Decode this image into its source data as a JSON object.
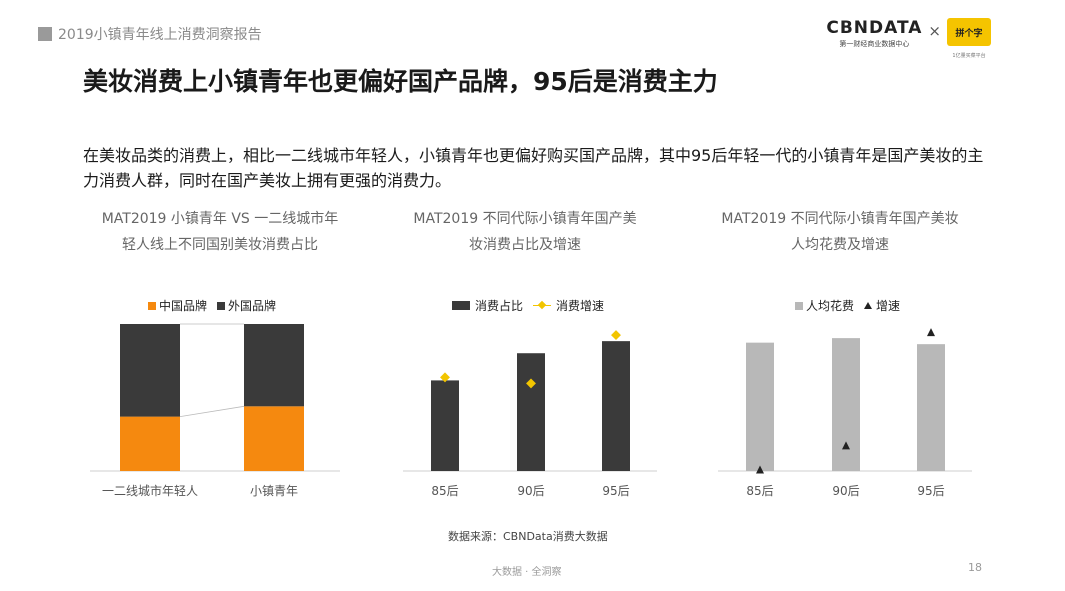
{
  "header": {
    "report_tag": "2019小镇青年线上消费洞察报告",
    "logo_main": "CBNDATA",
    "logo_sub": "第一财经商业数据中心",
    "logo_separator": "×",
    "partner_name": "拼个字",
    "partner_tagline": "1亿量买菜平台"
  },
  "title": "美妆消费上小镇青年也更偏好国产品牌，95后是消费主力",
  "description": "在美妆品类的消费上，相比一二线城市年轻人，小镇青年也更偏好购买国产品牌，其中95后年轻一代的小镇青年是国产美妆的主力消费人群，同时在国产美妆上拥有更强的消费力。",
  "chart_data": [
    {
      "type": "bar",
      "stacked": true,
      "title": "MAT2019 小镇青年 VS 一二线城市年轻人线上不同国别美妆消费占比",
      "categories": [
        "一二线城市年轻人",
        "小镇青年"
      ],
      "series": [
        {
          "name": "中国品牌",
          "values": [
            37,
            44
          ],
          "color": "#f5890f"
        },
        {
          "name": "外国品牌",
          "values": [
            63,
            56
          ],
          "color": "#3a3a3a"
        }
      ],
      "ylim": [
        0,
        100
      ],
      "legend_position": "top",
      "grid": false
    },
    {
      "type": "bar",
      "title": "MAT2019 不同代际小镇青年国产美妆消费占比及增速",
      "categories": [
        "85后",
        "90后",
        "95后"
      ],
      "series": [
        {
          "name": "消费占比",
          "type": "bar",
          "values": [
            60,
            78,
            86
          ],
          "color": "#3a3a3a"
        },
        {
          "name": "消费增速",
          "type": "line",
          "values": [
            62,
            58,
            90
          ],
          "color": "#f2c500"
        }
      ],
      "ylim": [
        0,
        100
      ],
      "legend_position": "top",
      "grid": false
    },
    {
      "type": "bar",
      "title": "MAT2019 不同代际小镇青年国产美妆人均花费及增速",
      "categories": [
        "85后",
        "90后",
        "95后"
      ],
      "series": [
        {
          "name": "人均花费",
          "type": "bar",
          "values": [
            85,
            88,
            84
          ],
          "color": "#b8b8b8"
        },
        {
          "name": "增速",
          "type": "line",
          "values": [
            1,
            17,
            92
          ],
          "color": "#222222"
        }
      ],
      "ylim": [
        0,
        100
      ],
      "legend_position": "top",
      "grid": false
    }
  ],
  "source": "数据来源：CBNData消费大数据",
  "footer": "大数据 · 全洞察",
  "page_number": "18"
}
